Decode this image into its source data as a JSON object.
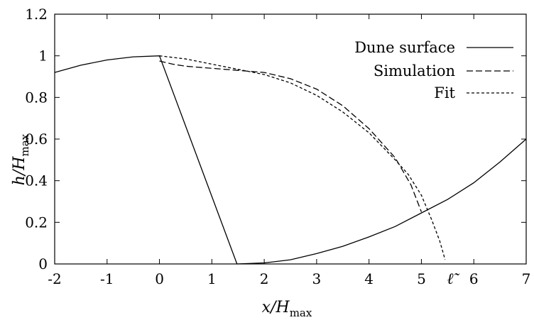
{
  "chart_data": {
    "type": "line",
    "xlabel": "x/H",
    "xlabel_sub": "max",
    "ylabel": "h/H",
    "ylabel_sub": "max",
    "xlim": [
      -2,
      7
    ],
    "ylim": [
      0,
      1.2
    ],
    "x_ticks": [
      -2,
      -1,
      0,
      1,
      2,
      3,
      4,
      5,
      6,
      7
    ],
    "x_tick_labels": [
      "-2",
      "-1",
      "0",
      "1",
      "2",
      "3",
      "4",
      "5",
      "6",
      "7"
    ],
    "y_ticks": [
      0,
      0.2,
      0.4,
      0.6,
      0.8,
      1,
      1.2
    ],
    "y_tick_labels": [
      "0",
      "0.2",
      "0.4",
      "0.6",
      "0.8",
      "1",
      "1.2"
    ],
    "annotation": {
      "text": "ℓ̃",
      "x": 5.55
    },
    "grid": false,
    "legend_position": "top-right",
    "series": [
      {
        "name": "Dune surface",
        "style": "solid",
        "segments": [
          [
            [
              -2,
              0.92
            ],
            [
              -1.5,
              0.955
            ],
            [
              -1,
              0.98
            ],
            [
              -0.5,
              0.995
            ],
            [
              0,
              1.0
            ],
            [
              1.48,
              0.0
            ]
          ],
          [
            [
              1.48,
              0.0
            ],
            [
              2,
              0.005
            ],
            [
              2.5,
              0.02
            ],
            [
              3,
              0.05
            ],
            [
              3.5,
              0.085
            ],
            [
              4,
              0.13
            ],
            [
              4.5,
              0.18
            ],
            [
              5,
              0.245
            ],
            [
              5.5,
              0.31
            ],
            [
              6,
              0.39
            ],
            [
              6.5,
              0.49
            ],
            [
              7,
              0.6
            ]
          ]
        ]
      },
      {
        "name": "Simulation",
        "style": "dashed",
        "segments": [
          [
            [
              0,
              0.975
            ],
            [
              0.25,
              0.96
            ],
            [
              0.5,
              0.95
            ],
            [
              1,
              0.94
            ],
            [
              1.5,
              0.93
            ],
            [
              2,
              0.92
            ],
            [
              2.5,
              0.89
            ],
            [
              3,
              0.84
            ],
            [
              3.5,
              0.76
            ],
            [
              4,
              0.65
            ],
            [
              4.5,
              0.51
            ],
            [
              4.8,
              0.38
            ],
            [
              5,
              0.25
            ]
          ]
        ]
      },
      {
        "name": "Fit",
        "style": "dotted",
        "segments": [
          [
            [
              0,
              1.0
            ],
            [
              0.5,
              0.985
            ],
            [
              1,
              0.96
            ],
            [
              1.5,
              0.935
            ],
            [
              2,
              0.91
            ],
            [
              2.5,
              0.87
            ],
            [
              3,
              0.81
            ],
            [
              3.5,
              0.73
            ],
            [
              4,
              0.63
            ],
            [
              4.5,
              0.5
            ],
            [
              4.75,
              0.43
            ],
            [
              5,
              0.33
            ],
            [
              5.2,
              0.21
            ],
            [
              5.35,
              0.11
            ],
            [
              5.43,
              0.04
            ],
            [
              5.45,
              0.02
            ]
          ]
        ]
      }
    ]
  }
}
